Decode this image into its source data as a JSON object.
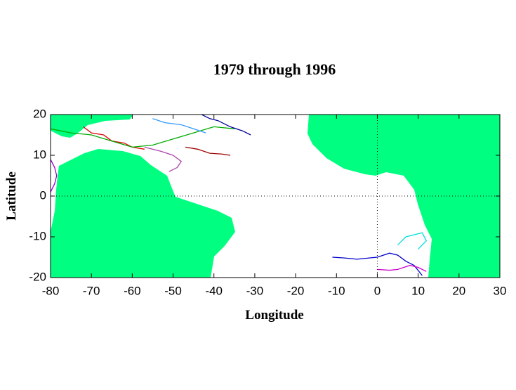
{
  "chart_data": {
    "type": "map",
    "title": "1979 through 1996",
    "x_label": "Longitude",
    "y_label": "Latitude",
    "xlim": [
      -80,
      30
    ],
    "ylim": [
      -20,
      20
    ],
    "xticks": [
      -80,
      -70,
      -60,
      -50,
      -40,
      -30,
      -20,
      -10,
      0,
      10,
      20,
      30
    ],
    "yticks": [
      -20,
      -10,
      0,
      10,
      20
    ],
    "zero_lines": true,
    "land_color": "#00ff80",
    "series": [
      {
        "color": "#0000cc",
        "x": [
          -11,
          -8,
          -5,
          -2,
          0,
          3,
          5,
          7,
          9,
          11
        ],
        "y": [
          -15,
          -15.2,
          -15.5,
          -15.2,
          -15,
          -14,
          -14.5,
          -16,
          -17,
          -19.5
        ]
      },
      {
        "color": "#cc00cc",
        "x": [
          0,
          3,
          5,
          8,
          10,
          12
        ],
        "y": [
          -18,
          -18.2,
          -18,
          -17,
          -17.5,
          -18.5
        ]
      },
      {
        "color": "#00dddd",
        "x": [
          5,
          6,
          7,
          9,
          11,
          12,
          10
        ],
        "y": [
          -12,
          -11,
          -10,
          -9.5,
          -9,
          -11,
          -13
        ]
      },
      {
        "color": "#dd0000",
        "x": [
          -72,
          -70,
          -67,
          -65,
          -62,
          -60,
          -57
        ],
        "y": [
          17,
          15.5,
          15,
          13.5,
          13,
          12,
          11.5
        ]
      },
      {
        "color": "#00aa00",
        "x": [
          -80,
          -75,
          -70,
          -65,
          -60,
          -55,
          -50,
          -45,
          -40,
          -35
        ],
        "y": [
          16.5,
          15.5,
          15,
          13.5,
          12,
          12.5,
          14,
          15.5,
          17,
          16.5
        ]
      },
      {
        "color": "#aa44aa",
        "x": [
          -57,
          -53,
          -50,
          -48,
          -49,
          -51
        ],
        "y": [
          12,
          11,
          10,
          8.5,
          7,
          6
        ]
      },
      {
        "color": "#990000",
        "x": [
          -47,
          -44,
          -41,
          -38,
          -36
        ],
        "y": [
          12,
          11.5,
          10.5,
          10.3,
          10
        ]
      },
      {
        "color": "#000099",
        "x": [
          -43,
          -41,
          -39,
          -36,
          -33,
          -31
        ],
        "y": [
          20,
          19,
          18.5,
          17,
          16,
          15
        ]
      },
      {
        "color": "#3399ff",
        "x": [
          -55,
          -52,
          -48,
          -45,
          -42
        ],
        "y": [
          19,
          18,
          17.5,
          16.5,
          15.5
        ]
      },
      {
        "color": "#9900cc",
        "x": [
          -80,
          -79,
          -78.5,
          -79,
          -80
        ],
        "y": [
          9,
          7,
          5,
          3,
          1
        ]
      }
    ]
  }
}
